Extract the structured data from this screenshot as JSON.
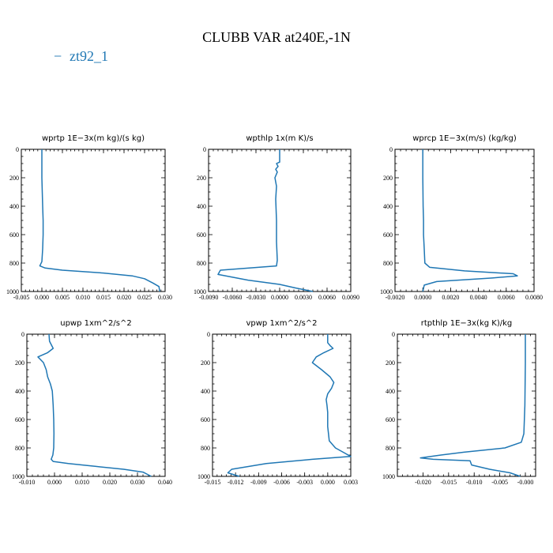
{
  "title": "CLUBB VAR at240E,-1N",
  "legend": {
    "line": "−",
    "label": "zt92_1",
    "color": "#1f77b4"
  },
  "chart_data": [
    {
      "type": "line",
      "title": "wprtp   1E−3x(m kg)/(s kg)",
      "xlim": [
        -0.005,
        0.03
      ],
      "ylim": [
        1000,
        0
      ],
      "xticks": [
        -0.005,
        0.0,
        0.005,
        0.01,
        0.015,
        0.02,
        0.025,
        0.03
      ],
      "xtick_labels": [
        "-0.005",
        "0.000",
        "0.005",
        "0.010",
        "0.015",
        "0.020",
        "0.025",
        "0.030"
      ],
      "yticks": [
        0,
        200,
        400,
        600,
        800,
        1000
      ],
      "ytick_labels": [
        "0",
        "200",
        "400",
        "600",
        "800",
        "1000"
      ],
      "series": [
        {
          "x": [
            0.0,
            0.0,
            0.0002,
            0.0003,
            0.0003,
            0.0002,
            0.0,
            -0.0005,
            0.0008,
            0.005,
            0.015,
            0.022,
            0.025,
            0.027,
            0.0285,
            0.0287
          ],
          "y": [
            0,
            200,
            400,
            500,
            600,
            700,
            790,
            820,
            835,
            850,
            870,
            890,
            910,
            940,
            965,
            1000
          ]
        }
      ]
    },
    {
      "type": "line",
      "title": "wpthlp   1x(m K)/s",
      "xlim": [
        -0.009,
        0.009
      ],
      "ylim": [
        1000,
        0
      ],
      "xticks": [
        -0.009,
        -0.006,
        -0.003,
        0.0,
        0.003,
        0.006,
        0.009
      ],
      "xtick_labels": [
        "-0.0090",
        "-0.0060",
        "-0.0030",
        "0.0000",
        "0.0030",
        "0.0060",
        "0.0090"
      ],
      "yticks": [
        0,
        200,
        400,
        600,
        800,
        1000
      ],
      "ytick_labels": [
        "0",
        "200",
        "400",
        "600",
        "800",
        "1000"
      ],
      "series": [
        {
          "x": [
            0.0,
            0.0,
            -0.0004,
            -0.0002,
            -0.0005,
            -0.0003,
            -0.0006,
            -0.0004,
            -0.0005,
            -0.0004,
            -0.0004,
            -0.0003,
            -0.0004,
            -0.0075,
            -0.0078,
            -0.004,
            0.0,
            0.002,
            0.0042
          ],
          "y": [
            0,
            90,
            100,
            120,
            140,
            160,
            200,
            260,
            350,
            500,
            650,
            780,
            820,
            850,
            880,
            920,
            950,
            975,
            1000
          ]
        }
      ]
    },
    {
      "type": "line",
      "title": "wprcp   1E−3x(m/s) (kg/kg)",
      "xlim": [
        -0.002,
        0.008
      ],
      "ylim": [
        1000,
        0
      ],
      "xticks": [
        -0.002,
        0.0,
        0.002,
        0.004,
        0.006,
        0.008
      ],
      "xtick_labels": [
        "-0.0020",
        "0.0000",
        "0.0020",
        "0.0040",
        "0.0060",
        "0.0080"
      ],
      "yticks": [
        0,
        200,
        400,
        600,
        800,
        1000
      ],
      "ytick_labels": [
        "0",
        "200",
        "400",
        "600",
        "800",
        "1000"
      ],
      "series": [
        {
          "x": [
            0.0,
            0.0,
            2e-05,
            5e-05,
            5e-05,
            0.0001,
            0.00015,
            0.0005,
            0.003,
            0.0065,
            0.0068,
            0.005,
            0.001,
            0.0001,
            0.0
          ],
          "y": [
            0,
            200,
            400,
            500,
            600,
            700,
            800,
            830,
            855,
            875,
            890,
            905,
            930,
            955,
            1000
          ]
        }
      ]
    },
    {
      "type": "line",
      "title": "upwp   1xm^2/s^2",
      "xlim": [
        -0.01,
        0.04
      ],
      "ylim": [
        1000,
        0
      ],
      "xticks": [
        -0.01,
        0.0,
        0.01,
        0.02,
        0.03,
        0.04
      ],
      "xtick_labels": [
        "-0.010",
        "0.000",
        "0.010",
        "0.020",
        "0.030",
        "0.040"
      ],
      "yticks": [
        0,
        200,
        400,
        600,
        800,
        1000
      ],
      "ytick_labels": [
        "0",
        "200",
        "400",
        "600",
        "800",
        "1000"
      ],
      "series": [
        {
          "x": [
            -0.002,
            -0.0018,
            -0.0005,
            -0.0025,
            -0.006,
            -0.004,
            -0.003,
            -0.0025,
            -0.0015,
            -0.0008,
            -0.0005,
            -0.0003,
            -0.0002,
            -0.0003,
            -0.0006,
            -0.0012,
            -0.0005,
            0.005,
            0.015,
            0.025,
            0.032,
            0.035
          ],
          "y": [
            0,
            50,
            100,
            130,
            160,
            200,
            250,
            300,
            350,
            400,
            500,
            600,
            700,
            800,
            850,
            880,
            895,
            910,
            930,
            950,
            970,
            1000
          ]
        }
      ]
    },
    {
      "type": "line",
      "title": "vpwp   1xm^2/s^2",
      "xlim": [
        -0.015,
        0.003
      ],
      "ylim": [
        1000,
        0
      ],
      "xticks": [
        -0.015,
        -0.012,
        -0.009,
        -0.006,
        -0.003,
        0.0,
        0.003
      ],
      "xtick_labels": [
        "-0.015",
        "-0.012",
        "-0.009",
        "-0.006",
        "-0.003",
        "0.000",
        "0.003"
      ],
      "yticks": [
        0,
        200,
        400,
        600,
        800,
        1000
      ],
      "ytick_labels": [
        "0",
        "200",
        "400",
        "600",
        "800",
        "1000"
      ],
      "series": [
        {
          "x": [
            0.0,
            0.0,
            0.0003,
            0.0007,
            -0.0005,
            -0.0015,
            -0.002,
            -0.0008,
            0.0003,
            0.0008,
            0.0005,
            0.0,
            -0.0002,
            -0.0001,
            0.0,
            0.0,
            0.0002,
            0.001,
            0.002,
            0.003,
            -0.002,
            -0.008,
            -0.0125,
            -0.013,
            -0.0115
          ],
          "y": [
            0,
            60,
            80,
            100,
            130,
            160,
            200,
            250,
            300,
            340,
            380,
            420,
            460,
            500,
            550,
            650,
            750,
            800,
            830,
            860,
            880,
            910,
            950,
            975,
            1000
          ]
        }
      ]
    },
    {
      "type": "line",
      "title": "rtpthlp   1E−3x(kg K)/kg",
      "xlim": [
        -0.025,
        0.002
      ],
      "ylim": [
        1000,
        0
      ],
      "xticks": [
        -0.02,
        -0.015,
        -0.01,
        -0.005,
        0.0
      ],
      "xtick_labels": [
        "-0.020",
        "-0.015",
        "-0.010",
        "-0.005",
        "-0.000"
      ],
      "yticks": [
        0,
        200,
        400,
        600,
        800,
        1000
      ],
      "ytick_labels": [
        "0",
        "200",
        "400",
        "600",
        "800",
        "1000"
      ],
      "series": [
        {
          "x": [
            0.0,
            0.0,
            -0.0001,
            -0.0003,
            -0.0008,
            -0.004,
            -0.012,
            -0.0165,
            -0.0205,
            -0.018,
            -0.0108,
            -0.0105,
            -0.007,
            -0.003,
            -0.001
          ],
          "y": [
            0,
            200,
            500,
            700,
            760,
            800,
            830,
            850,
            870,
            880,
            890,
            920,
            950,
            975,
            1000
          ]
        }
      ]
    }
  ]
}
